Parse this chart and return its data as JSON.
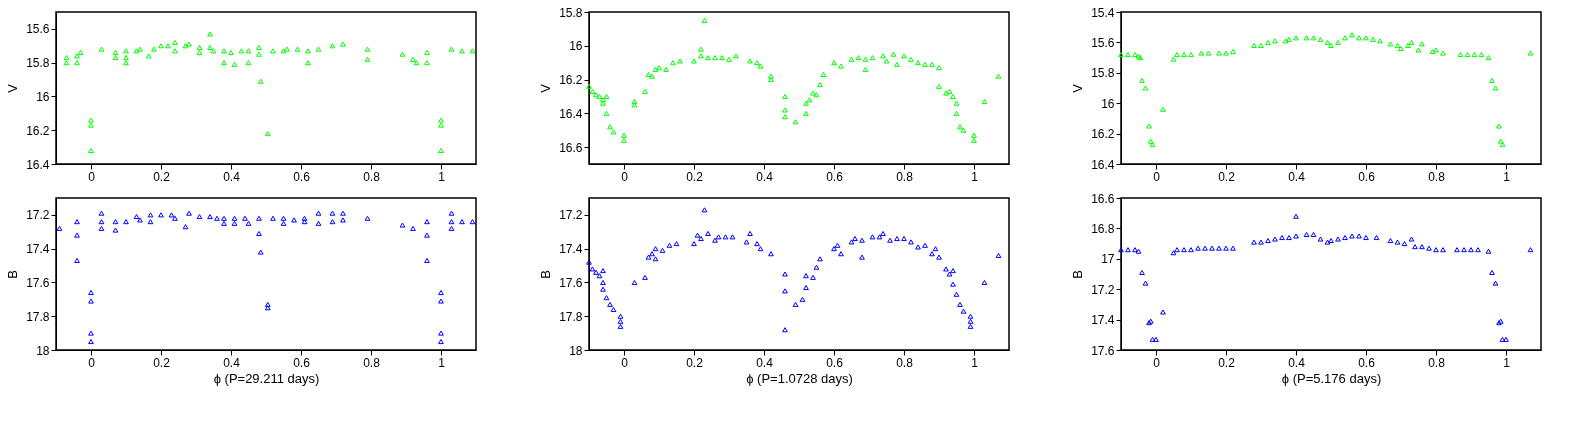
{
  "chart_data": [
    {
      "type": "scatter",
      "ylabel": "V",
      "xlim": [
        -0.1,
        1.1
      ],
      "xticks": [
        0,
        0.2,
        0.4,
        0.6,
        0.8,
        1
      ],
      "ylim": [
        16.4,
        15.5
      ],
      "yticks": [
        15.6,
        15.8,
        16,
        16.2,
        16.4
      ],
      "grid": false,
      "marker": "triangle",
      "x": [
        -0.07,
        -0.07,
        -0.04,
        -0.04,
        -0.03,
        0.0,
        0.0,
        0.0,
        0.03,
        0.07,
        0.07,
        0.1,
        0.1,
        0.1,
        0.13,
        0.14,
        0.165,
        0.18,
        0.2,
        0.22,
        0.24,
        0.24,
        0.27,
        0.28,
        0.31,
        0.31,
        0.34,
        0.34,
        0.35,
        0.38,
        0.38,
        0.4,
        0.41,
        0.43,
        0.45,
        0.45,
        0.48,
        0.48,
        0.485,
        0.505,
        0.52,
        0.55,
        0.56,
        0.59,
        0.62,
        0.62,
        0.65,
        0.69,
        0.72,
        0.79,
        0.79,
        0.89,
        0.92,
        0.93,
        0.96,
        0.96,
        1.0,
        1.0,
        1.0,
        1.03,
        1.06,
        1.09
      ],
      "series": [
        {
          "color": "#00ff00",
          "values": [
            15.77,
            15.8,
            15.76,
            15.8,
            15.74,
            16.14,
            16.17,
            16.32,
            15.72,
            15.74,
            15.77,
            15.73,
            15.77,
            15.8,
            15.73,
            15.72,
            15.76,
            15.72,
            15.7,
            15.7,
            15.68,
            15.73,
            15.7,
            15.69,
            15.74,
            15.71,
            15.63,
            15.71,
            15.73,
            15.73,
            15.8,
            15.74,
            15.81,
            15.73,
            15.8,
            15.73,
            15.71,
            15.75,
            15.91,
            16.22,
            15.73,
            15.73,
            15.72,
            15.72,
            15.73,
            15.8,
            15.72,
            15.7,
            15.69,
            15.72,
            15.78,
            15.75,
            15.78,
            15.8,
            15.74,
            15.8,
            16.14,
            16.17,
            16.32,
            15.72,
            15.73,
            15.73
          ]
        }
      ]
    },
    {
      "type": "scatter",
      "ylabel": "V",
      "xlim": [
        -0.1,
        1.1
      ],
      "xticks": [
        0,
        0.2,
        0.4,
        0.6,
        0.8,
        1
      ],
      "ylim": [
        16.7,
        15.8
      ],
      "yticks": [
        15.8,
        16,
        16.2,
        16.4,
        16.6
      ],
      "grid": false,
      "marker": "triangle",
      "x": [
        -0.1,
        -0.09,
        -0.08,
        -0.07,
        -0.06,
        -0.06,
        -0.05,
        -0.05,
        -0.04,
        -0.03,
        0.0,
        0.0,
        0.03,
        0.03,
        0.06,
        0.07,
        0.08,
        0.09,
        0.1,
        0.12,
        0.14,
        0.16,
        0.2,
        0.22,
        0.22,
        0.23,
        0.24,
        0.26,
        0.28,
        0.3,
        0.32,
        0.36,
        0.38,
        0.39,
        0.42,
        0.42,
        0.46,
        0.46,
        0.46,
        0.49,
        0.52,
        0.52,
        0.53,
        0.54,
        0.55,
        0.56,
        0.57,
        0.6,
        0.62,
        0.65,
        0.67,
        0.69,
        0.69,
        0.71,
        0.74,
        0.75,
        0.77,
        0.78,
        0.8,
        0.82,
        0.84,
        0.86,
        0.88,
        0.9,
        0.9,
        0.92,
        0.93,
        0.94,
        0.95,
        0.95,
        0.96,
        0.97,
        1.0,
        1.0,
        1.03,
        1.07
      ],
      "series": [
        {
          "color": "#00ff00",
          "values": [
            16.24,
            16.27,
            16.29,
            16.3,
            16.32,
            16.34,
            16.3,
            16.4,
            16.48,
            16.51,
            16.53,
            16.56,
            16.33,
            16.35,
            16.27,
            16.17,
            16.18,
            16.14,
            16.13,
            16.14,
            16.1,
            16.09,
            16.09,
            16.02,
            16.06,
            15.85,
            16.07,
            16.07,
            16.07,
            16.08,
            16.06,
            16.09,
            16.1,
            16.12,
            16.18,
            16.2,
            16.3,
            16.38,
            16.42,
            16.45,
            16.4,
            16.34,
            16.32,
            16.28,
            16.29,
            16.23,
            16.17,
            16.1,
            16.12,
            16.08,
            16.07,
            16.08,
            16.14,
            16.07,
            16.06,
            16.09,
            16.05,
            16.11,
            16.06,
            16.08,
            16.1,
            16.11,
            16.11,
            16.13,
            16.24,
            16.28,
            16.27,
            16.3,
            16.34,
            16.4,
            16.48,
            16.5,
            16.53,
            16.56,
            16.33,
            16.18
          ]
        }
      ]
    },
    {
      "type": "scatter",
      "ylabel": "V",
      "xlim": [
        -0.1,
        1.1
      ],
      "xticks": [
        0,
        0.2,
        0.4,
        0.6,
        0.8,
        1
      ],
      "ylim": [
        16.4,
        15.4
      ],
      "yticks": [
        15.4,
        15.6,
        15.8,
        16,
        16.2,
        16.4
      ],
      "grid": false,
      "marker": "triangle",
      "x": [
        -0.1,
        -0.08,
        -0.06,
        -0.05,
        -0.045,
        -0.04,
        -0.03,
        -0.02,
        -0.015,
        -0.01,
        0.02,
        0.05,
        0.06,
        0.08,
        0.1,
        0.13,
        0.15,
        0.18,
        0.2,
        0.22,
        0.28,
        0.3,
        0.32,
        0.34,
        0.37,
        0.38,
        0.4,
        0.43,
        0.45,
        0.47,
        0.49,
        0.5,
        0.52,
        0.54,
        0.56,
        0.58,
        0.6,
        0.62,
        0.64,
        0.67,
        0.69,
        0.7,
        0.72,
        0.73,
        0.75,
        0.76,
        0.79,
        0.8,
        0.82,
        0.87,
        0.89,
        0.91,
        0.93,
        0.95,
        0.96,
        0.97,
        0.98,
        0.985,
        0.99,
        1.07
      ],
      "series": [
        {
          "color": "#00ff00",
          "values": [
            15.68,
            15.68,
            15.68,
            15.69,
            15.7,
            15.85,
            15.9,
            16.15,
            16.25,
            16.27,
            16.04,
            15.71,
            15.68,
            15.68,
            15.68,
            15.67,
            15.67,
            15.67,
            15.67,
            15.66,
            15.62,
            15.62,
            15.6,
            15.59,
            15.59,
            15.58,
            15.57,
            15.57,
            15.57,
            15.58,
            15.6,
            15.62,
            15.6,
            15.57,
            15.55,
            15.57,
            15.57,
            15.58,
            15.59,
            15.61,
            15.62,
            15.64,
            15.62,
            15.6,
            15.65,
            15.61,
            15.66,
            15.65,
            15.67,
            15.68,
            15.68,
            15.68,
            15.68,
            15.7,
            15.85,
            15.9,
            16.15,
            16.25,
            16.27,
            15.67
          ]
        }
      ]
    },
    {
      "type": "scatter",
      "ylabel": "B",
      "xlabel": "ϕ (P=29.211 days)",
      "xlim": [
        -0.1,
        1.1
      ],
      "xticks": [
        0,
        0.2,
        0.4,
        0.6,
        0.8,
        1
      ],
      "ylim": [
        18,
        17.1
      ],
      "yticks": [
        17.2,
        17.4,
        17.6,
        17.8,
        18
      ],
      "grid": false,
      "marker": "triangle",
      "x": [
        -0.09,
        -0.04,
        -0.04,
        -0.04,
        0.0,
        0.0,
        0.0,
        0.0,
        0.03,
        0.03,
        0.03,
        0.07,
        0.07,
        0.1,
        0.13,
        0.14,
        0.17,
        0.17,
        0.2,
        0.23,
        0.24,
        0.27,
        0.28,
        0.31,
        0.34,
        0.36,
        0.38,
        0.38,
        0.41,
        0.41,
        0.44,
        0.45,
        0.48,
        0.48,
        0.485,
        0.505,
        0.505,
        0.52,
        0.55,
        0.55,
        0.58,
        0.61,
        0.61,
        0.65,
        0.65,
        0.69,
        0.69,
        0.72,
        0.72,
        0.79,
        0.89,
        0.92,
        0.96,
        0.96,
        0.96,
        1.0,
        1.0,
        1.0,
        1.0,
        1.03,
        1.03,
        1.03,
        1.06,
        1.09
      ],
      "series": [
        {
          "color": "#0000ff",
          "values": [
            17.28,
            17.24,
            17.32,
            17.47,
            17.66,
            17.71,
            17.9,
            17.95,
            17.19,
            17.24,
            17.28,
            17.24,
            17.29,
            17.24,
            17.21,
            17.23,
            17.2,
            17.24,
            17.2,
            17.2,
            17.22,
            17.27,
            17.19,
            17.21,
            17.21,
            17.22,
            17.22,
            17.25,
            17.22,
            17.25,
            17.22,
            17.25,
            17.22,
            17.31,
            17.42,
            17.73,
            17.75,
            17.22,
            17.22,
            17.25,
            17.23,
            17.22,
            17.24,
            17.19,
            17.25,
            17.19,
            17.24,
            17.19,
            17.23,
            17.22,
            17.26,
            17.28,
            17.24,
            17.32,
            17.47,
            17.66,
            17.71,
            17.9,
            17.95,
            17.19,
            17.24,
            17.28,
            17.24,
            17.24
          ]
        }
      ]
    },
    {
      "type": "scatter",
      "ylabel": "B",
      "xlabel": "ϕ (P=1.0728 days)",
      "xlim": [
        -0.1,
        1.1
      ],
      "xticks": [
        0,
        0.2,
        0.4,
        0.6,
        0.8,
        1
      ],
      "ylim": [
        18,
        17.1
      ],
      "yticks": [
        17.2,
        17.4,
        17.6,
        17.8,
        18
      ],
      "grid": false,
      "marker": "triangle",
      "x": [
        -0.1,
        -0.09,
        -0.08,
        -0.07,
        -0.06,
        -0.06,
        -0.06,
        -0.05,
        -0.04,
        -0.03,
        -0.01,
        -0.01,
        -0.01,
        0.03,
        0.06,
        0.07,
        0.08,
        0.09,
        0.09,
        0.11,
        0.13,
        0.15,
        0.2,
        0.21,
        0.22,
        0.23,
        0.24,
        0.26,
        0.27,
        0.29,
        0.31,
        0.35,
        0.36,
        0.38,
        0.39,
        0.42,
        0.46,
        0.46,
        0.46,
        0.49,
        0.51,
        0.52,
        0.52,
        0.54,
        0.55,
        0.56,
        0.6,
        0.61,
        0.62,
        0.65,
        0.66,
        0.68,
        0.68,
        0.71,
        0.73,
        0.74,
        0.76,
        0.78,
        0.8,
        0.82,
        0.84,
        0.86,
        0.88,
        0.89,
        0.9,
        0.92,
        0.93,
        0.94,
        0.94,
        0.95,
        0.96,
        0.97,
        0.99,
        0.99,
        0.99,
        1.03,
        1.07
      ],
      "series": [
        {
          "color": "#0000ff",
          "values": [
            17.48,
            17.52,
            17.54,
            17.56,
            17.53,
            17.6,
            17.64,
            17.69,
            17.73,
            17.76,
            17.8,
            17.83,
            17.86,
            17.6,
            17.57,
            17.45,
            17.43,
            17.46,
            17.4,
            17.41,
            17.38,
            17.37,
            17.37,
            17.32,
            17.34,
            17.17,
            17.31,
            17.35,
            17.33,
            17.33,
            17.33,
            17.36,
            17.31,
            17.37,
            17.4,
            17.43,
            17.55,
            17.65,
            17.88,
            17.73,
            17.7,
            17.63,
            17.56,
            17.57,
            17.51,
            17.46,
            17.4,
            17.38,
            17.43,
            17.36,
            17.34,
            17.35,
            17.45,
            17.33,
            17.33,
            17.31,
            17.35,
            17.34,
            17.34,
            17.36,
            17.39,
            17.38,
            17.43,
            17.4,
            17.45,
            17.52,
            17.55,
            17.53,
            17.61,
            17.67,
            17.73,
            17.77,
            17.8,
            17.83,
            17.86,
            17.6,
            17.44
          ]
        }
      ]
    },
    {
      "type": "scatter",
      "ylabel": "B",
      "xlabel": "ϕ (P=5.176 days)",
      "xlim": [
        -0.1,
        1.1
      ],
      "xticks": [
        0,
        0.2,
        0.4,
        0.6,
        0.8,
        1
      ],
      "ylim": [
        17.6,
        16.6
      ],
      "yticks": [
        16.6,
        16.8,
        17,
        17.2,
        17.4,
        17.6
      ],
      "grid": false,
      "marker": "triangle",
      "x": [
        -0.1,
        -0.08,
        -0.06,
        -0.05,
        -0.04,
        -0.03,
        -0.02,
        -0.015,
        -0.01,
        0.0,
        0.02,
        0.05,
        0.06,
        0.08,
        0.1,
        0.12,
        0.14,
        0.16,
        0.18,
        0.2,
        0.22,
        0.28,
        0.3,
        0.32,
        0.34,
        0.36,
        0.38,
        0.4,
        0.4,
        0.43,
        0.45,
        0.47,
        0.49,
        0.5,
        0.52,
        0.54,
        0.56,
        0.58,
        0.6,
        0.63,
        0.67,
        0.69,
        0.71,
        0.73,
        0.74,
        0.76,
        0.78,
        0.8,
        0.82,
        0.86,
        0.88,
        0.9,
        0.92,
        0.95,
        0.96,
        0.97,
        0.98,
        0.985,
        0.99,
        1.0,
        1.07
      ],
      "series": [
        {
          "color": "#0000ff",
          "values": [
            16.94,
            16.94,
            16.94,
            16.95,
            17.09,
            17.16,
            17.42,
            17.41,
            17.53,
            17.53,
            17.35,
            16.96,
            16.94,
            16.94,
            16.94,
            16.93,
            16.93,
            16.93,
            16.93,
            16.93,
            16.93,
            16.89,
            16.89,
            16.88,
            16.87,
            16.86,
            16.86,
            16.85,
            16.72,
            16.84,
            16.84,
            16.87,
            16.89,
            16.88,
            16.87,
            16.86,
            16.85,
            16.85,
            16.86,
            16.86,
            16.88,
            16.89,
            16.9,
            16.87,
            16.92,
            16.92,
            16.93,
            16.94,
            16.94,
            16.94,
            16.94,
            16.94,
            16.94,
            16.95,
            17.09,
            17.16,
            17.42,
            17.41,
            17.53,
            17.53,
            16.94
          ]
        }
      ]
    }
  ]
}
